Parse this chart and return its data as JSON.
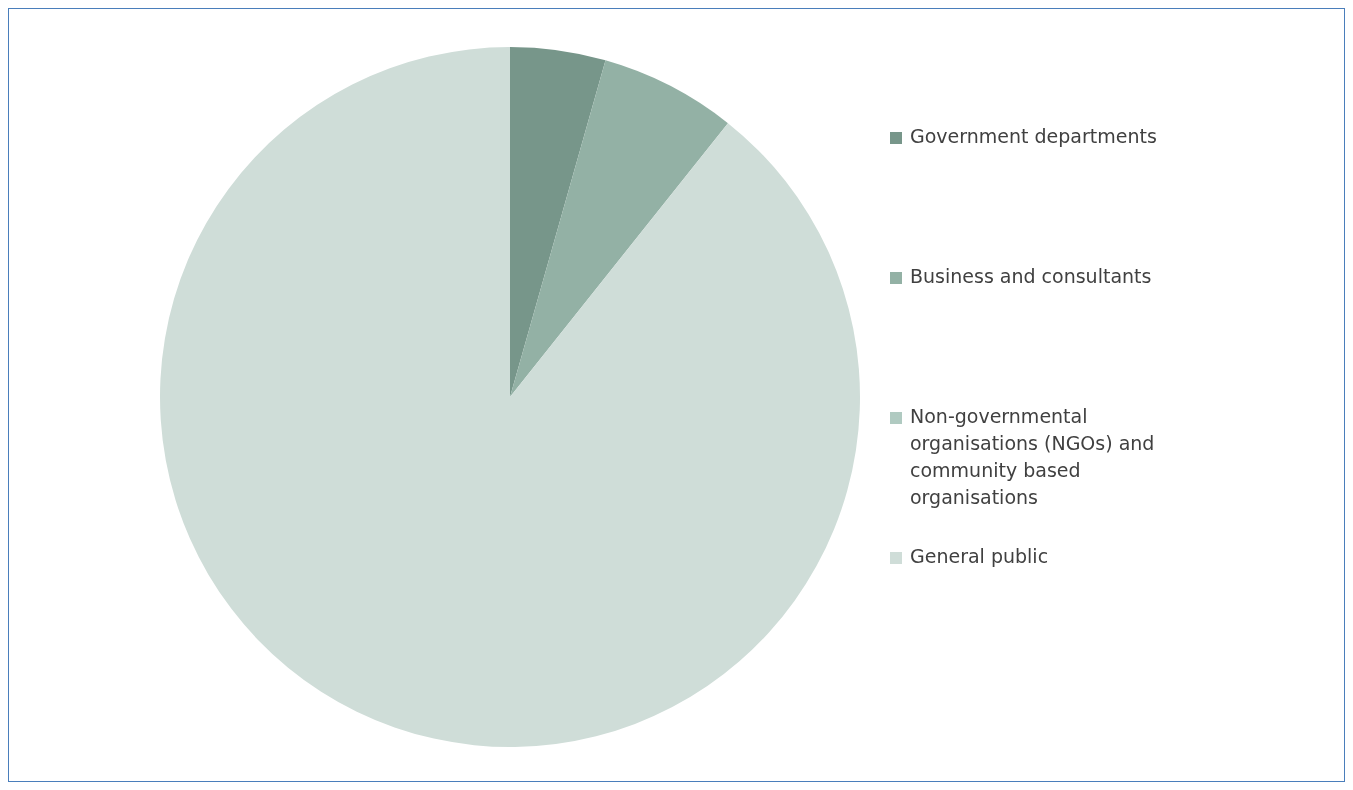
{
  "chart_data": {
    "type": "pie",
    "categories": [
      "Government departments",
      "Business and consultants",
      "Non-governmental organisations (NGOs) and community based organisations",
      "General public"
    ],
    "values": [
      4.4,
      6.3,
      0,
      89.3
    ],
    "colors": [
      "#77968a",
      "#93b1a5",
      "#b0cac1",
      "#cfddd8"
    ],
    "legend": "right"
  }
}
